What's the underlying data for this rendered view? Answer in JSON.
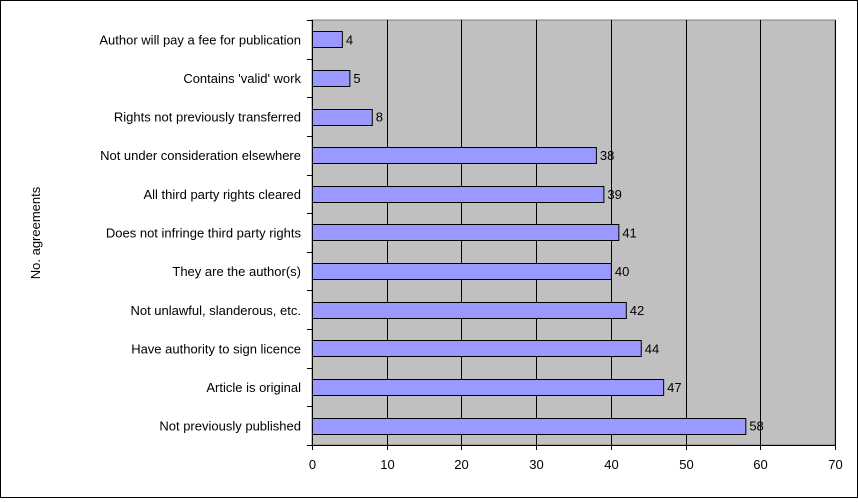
{
  "chart_data": {
    "type": "bar",
    "orientation": "horizontal",
    "title": "",
    "xlabel": "",
    "ylabel": "No. agreements",
    "categories": [
      "Author will pay a fee for publication",
      "Contains 'valid' work",
      "Rights not previously transferred",
      "Not under consideration elsewhere",
      "All third party rights cleared",
      "Does not infringe third party rights",
      "They are the author(s)",
      "Not unlawful, slanderous, etc.",
      "Have authority to sign licence",
      "Article is original",
      "Not previously published"
    ],
    "values": [
      4,
      5,
      8,
      38,
      39,
      41,
      40,
      42,
      44,
      47,
      58
    ],
    "xlim": [
      0,
      70
    ],
    "xticks": [
      0,
      10,
      20,
      30,
      40,
      50,
      60,
      70
    ],
    "grid": true,
    "legend": "none",
    "colors": {
      "bar_fill": "#9999ff",
      "bar_stroke": "#000000",
      "plot_background": "#c0c0c0",
      "grid": "#000000"
    }
  }
}
